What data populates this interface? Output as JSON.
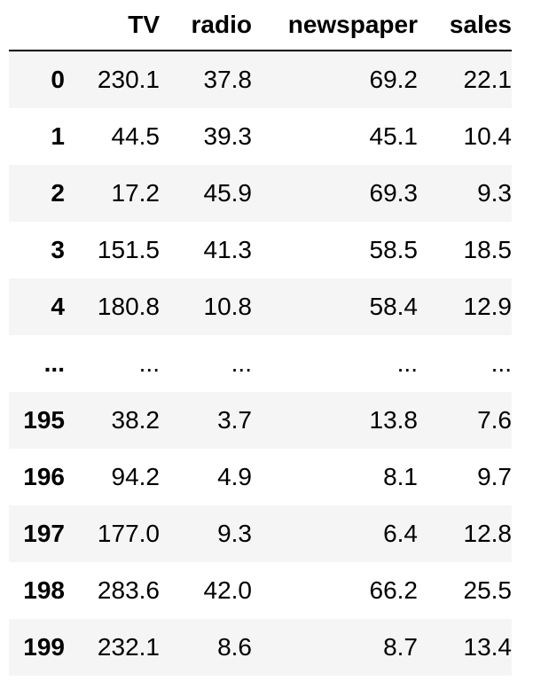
{
  "table": {
    "columns": [
      "",
      "TV",
      "radio",
      "newspaper",
      "sales"
    ],
    "rows": [
      {
        "index": "0",
        "tv": "230.1",
        "radio": "37.8",
        "newspaper": "69.2",
        "sales": "22.1"
      },
      {
        "index": "1",
        "tv": "44.5",
        "radio": "39.3",
        "newspaper": "45.1",
        "sales": "10.4"
      },
      {
        "index": "2",
        "tv": "17.2",
        "radio": "45.9",
        "newspaper": "69.3",
        "sales": "9.3"
      },
      {
        "index": "3",
        "tv": "151.5",
        "radio": "41.3",
        "newspaper": "58.5",
        "sales": "18.5"
      },
      {
        "index": "4",
        "tv": "180.8",
        "radio": "10.8",
        "newspaper": "58.4",
        "sales": "12.9"
      },
      {
        "index": "...",
        "tv": "...",
        "radio": "...",
        "newspaper": "...",
        "sales": "..."
      },
      {
        "index": "195",
        "tv": "38.2",
        "radio": "3.7",
        "newspaper": "13.8",
        "sales": "7.6"
      },
      {
        "index": "196",
        "tv": "94.2",
        "radio": "4.9",
        "newspaper": "8.1",
        "sales": "9.7"
      },
      {
        "index": "197",
        "tv": "177.0",
        "radio": "9.3",
        "newspaper": "6.4",
        "sales": "12.8"
      },
      {
        "index": "198",
        "tv": "283.6",
        "radio": "42.0",
        "newspaper": "66.2",
        "sales": "25.5"
      },
      {
        "index": "199",
        "tv": "232.1",
        "radio": "8.6",
        "newspaper": "8.7",
        "sales": "13.4"
      }
    ]
  },
  "colors": {
    "stripe_background": "#f5f5f5",
    "background": "#ffffff",
    "text": "#000000",
    "header_rule": "#000000"
  }
}
